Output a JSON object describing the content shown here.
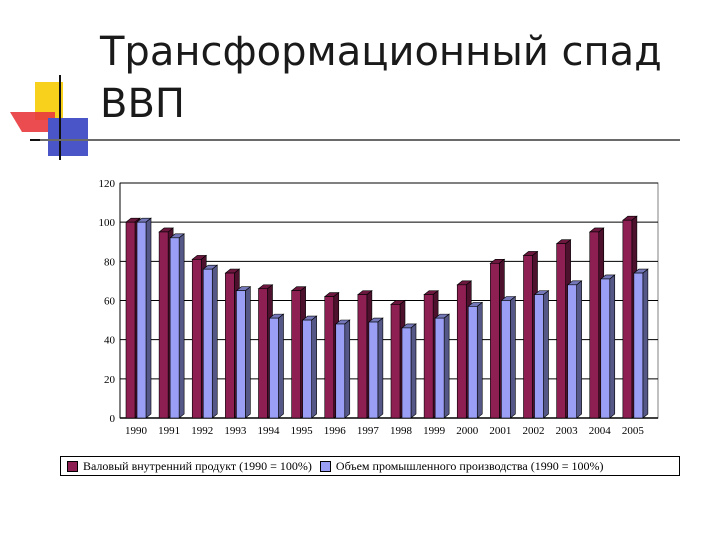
{
  "page": {
    "title_line1": "Трансформационный спад",
    "title_line2": "ВВП"
  },
  "colors": {
    "series1": "#8e1f52",
    "series2": "#9a9ef5",
    "logo_yellow": "#f7d11c",
    "logo_red": "#e8383d",
    "logo_blue": "#4a55c8"
  },
  "chart_data": {
    "type": "bar",
    "categories": [
      "1990",
      "1991",
      "1992",
      "1993",
      "1994",
      "1995",
      "1996",
      "1997",
      "1998",
      "1999",
      "2000",
      "2001",
      "2002",
      "2003",
      "2004",
      "2005"
    ],
    "series": [
      {
        "name": "Валовый внутренний продукт (1990 = 100%)",
        "values": [
          100,
          95,
          81,
          74,
          66,
          65,
          62,
          63,
          58,
          63,
          68,
          79,
          83,
          89,
          95,
          101
        ]
      },
      {
        "name": "Объем промышленного производства (1990 = 100%)",
        "values": [
          100,
          92,
          76,
          65,
          51,
          50,
          48,
          49,
          46,
          51,
          57,
          60,
          63,
          68,
          71,
          74
        ]
      }
    ],
    "ylim": [
      0,
      120
    ],
    "yticks": [
      "0",
      "20",
      "40",
      "60",
      "80",
      "100",
      "120"
    ],
    "grid": true,
    "legend_position": "bottom"
  }
}
